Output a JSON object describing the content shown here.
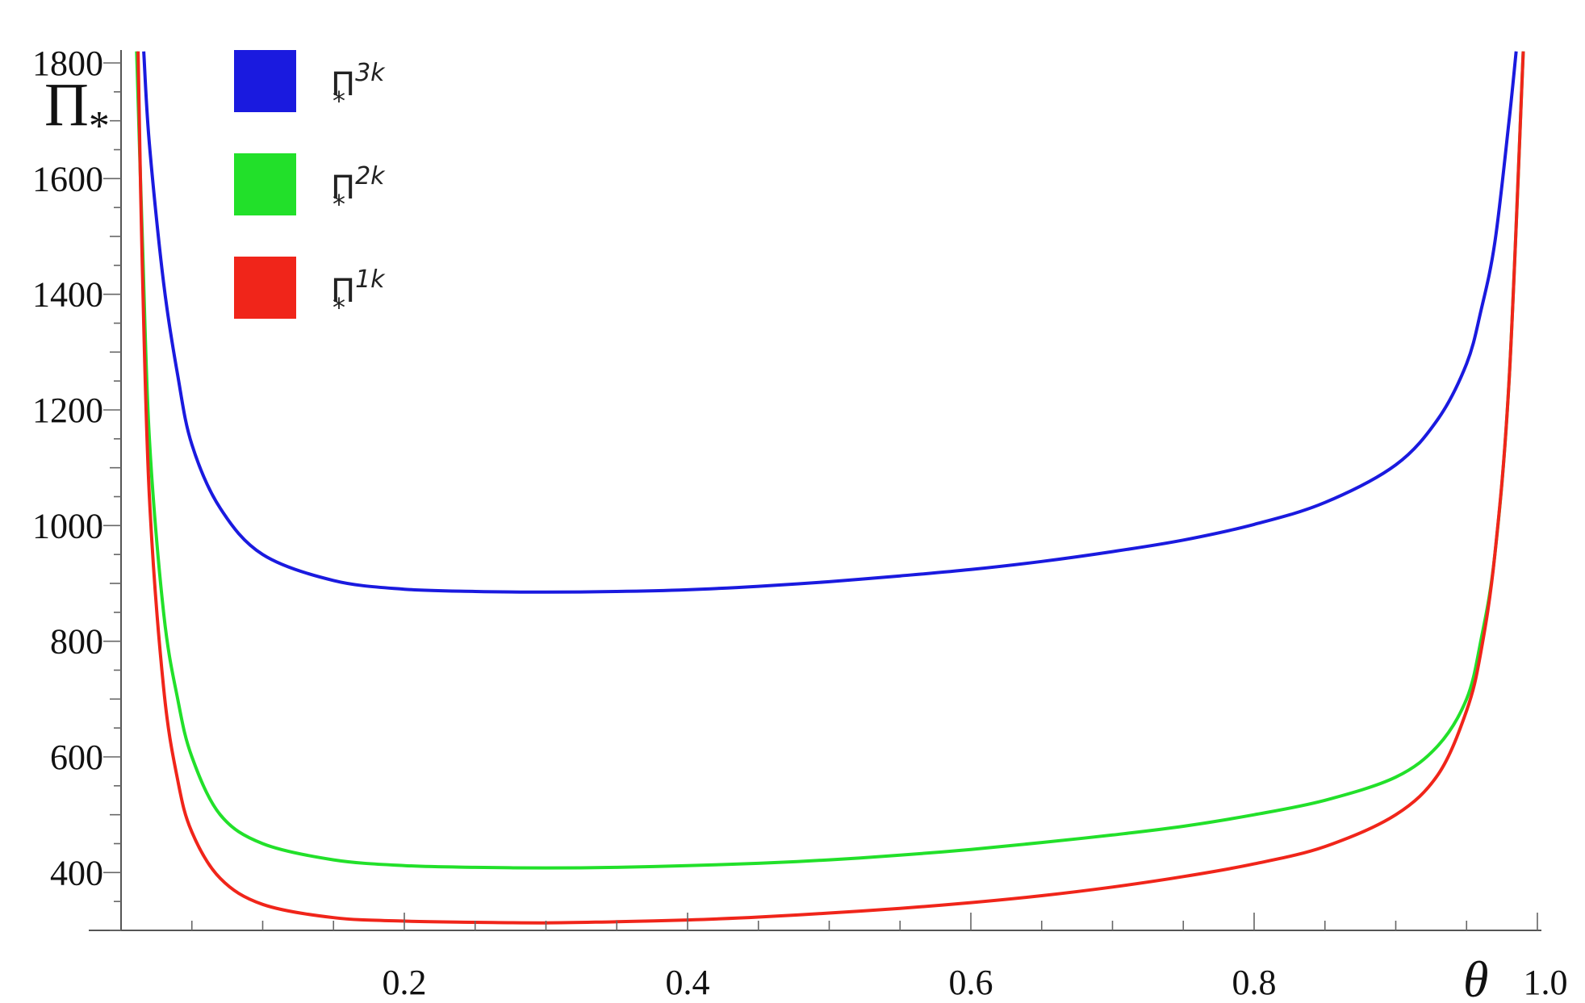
{
  "chart_data": {
    "type": "line",
    "xlabel": "θ",
    "ylabel": {
      "main": "Π",
      "sub": "*"
    },
    "xlim": [
      0,
      1.0
    ],
    "ylim": [
      300,
      1820
    ],
    "x_ticks": [
      0.2,
      0.4,
      0.6,
      0.8,
      1.0
    ],
    "x_tick_labels": [
      "0.2",
      "0.4",
      "0.6",
      "0.8",
      "1.0"
    ],
    "y_ticks": [
      400,
      600,
      800,
      1000,
      1200,
      1400,
      1600,
      1800
    ],
    "y_tick_labels": [
      "400",
      "600",
      "800",
      "1000",
      "1200",
      "1400",
      "1600",
      "1800"
    ],
    "grid": false,
    "legend_position": "top-left",
    "series": [
      {
        "name": "Π*3k",
        "label": {
          "base": "Π",
          "sub": "*",
          "sup": "3k"
        },
        "color": "#1a1adf",
        "x": [
          0.016,
          0.02,
          0.03,
          0.04,
          0.05,
          0.07,
          0.1,
          0.15,
          0.2,
          0.25,
          0.3,
          0.35,
          0.4,
          0.45,
          0.5,
          0.55,
          0.6,
          0.65,
          0.7,
          0.75,
          0.8,
          0.85,
          0.9,
          0.93,
          0.95,
          0.96,
          0.97,
          0.98,
          0.985
        ],
        "y": [
          1820,
          1660,
          1420,
          1260,
          1140,
          1030,
          950,
          905,
          890,
          886,
          885,
          886,
          889,
          895,
          903,
          913,
          924,
          938,
          955,
          975,
          1002,
          1040,
          1105,
          1185,
          1280,
          1370,
          1490,
          1700,
          1820
        ]
      },
      {
        "name": "Π*2k",
        "label": {
          "base": "Π",
          "sub": "*",
          "sup": "2k"
        },
        "color": "#22e02a",
        "x": [
          0.011,
          0.015,
          0.02,
          0.03,
          0.04,
          0.05,
          0.07,
          0.1,
          0.15,
          0.2,
          0.25,
          0.3,
          0.35,
          0.4,
          0.45,
          0.5,
          0.55,
          0.6,
          0.65,
          0.7,
          0.75,
          0.8,
          0.85,
          0.9,
          0.93,
          0.95,
          0.96,
          0.97,
          0.98,
          0.99
        ],
        "y": [
          1820,
          1500,
          1150,
          850,
          700,
          600,
          500,
          450,
          422,
          412,
          409,
          408,
          409,
          412,
          416,
          422,
          430,
          440,
          452,
          465,
          480,
          500,
          525,
          565,
          620,
          700,
          800,
          950,
          1250,
          1820
        ]
      },
      {
        "name": "Π*1k",
        "label": {
          "base": "Π",
          "sub": "*",
          "sup": "1k"
        },
        "color": "#f0251a",
        "x": [
          0.012,
          0.015,
          0.02,
          0.03,
          0.04,
          0.05,
          0.07,
          0.1,
          0.15,
          0.2,
          0.25,
          0.3,
          0.35,
          0.4,
          0.45,
          0.5,
          0.55,
          0.6,
          0.65,
          0.7,
          0.75,
          0.8,
          0.85,
          0.9,
          0.93,
          0.95,
          0.96,
          0.97,
          0.98,
          0.99
        ],
        "y": [
          1820,
          1450,
          1050,
          720,
          560,
          470,
          390,
          345,
          322,
          316,
          314,
          313,
          315,
          318,
          323,
          330,
          338,
          348,
          360,
          375,
          393,
          415,
          445,
          500,
          570,
          680,
          780,
          950,
          1250,
          1820
        ]
      }
    ]
  }
}
